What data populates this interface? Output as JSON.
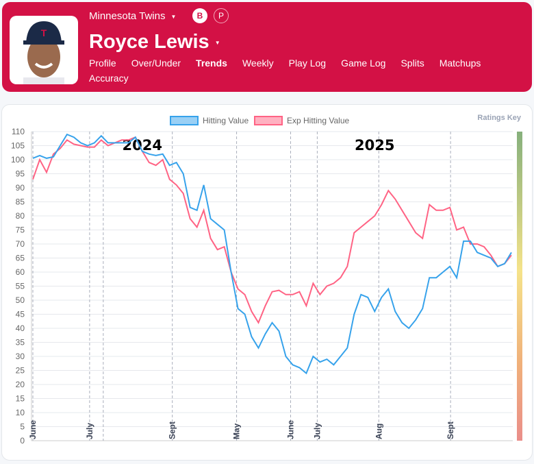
{
  "header": {
    "team": "Minnesota Twins",
    "player": "Royce Lewis",
    "badges": [
      "B",
      "P"
    ],
    "nav": [
      {
        "label": "Profile"
      },
      {
        "label": "Over/Under"
      },
      {
        "label": "Trends",
        "active": true
      },
      {
        "label": "Weekly"
      },
      {
        "label": "Play Log"
      },
      {
        "label": "Game Log"
      },
      {
        "label": "Splits"
      },
      {
        "label": "Matchups"
      },
      {
        "label": "Accuracy"
      }
    ]
  },
  "ratings_key": "Ratings Key",
  "colors": {
    "brand": "#d31145",
    "hitting": "#36a2eb",
    "exp": "#ff6384"
  },
  "chart_data": {
    "type": "line",
    "ylim": [
      0,
      110
    ],
    "yticks": [
      0,
      5,
      10,
      15,
      20,
      25,
      30,
      35,
      40,
      45,
      50,
      55,
      60,
      65,
      70,
      75,
      80,
      85,
      90,
      95,
      100,
      105,
      110
    ],
    "grid": true,
    "legend": "top",
    "month_ticks": [
      {
        "label": "June",
        "at": 0
      },
      {
        "label": "July",
        "at": 8.3
      },
      {
        "label": "",
        "at": 10.3
      },
      {
        "label": "Sept",
        "at": 20.4
      },
      {
        "label": "May",
        "at": 29.8
      },
      {
        "label": "June",
        "at": 37.7
      },
      {
        "label": "July",
        "at": 41.6
      },
      {
        "label": "Aug",
        "at": 50.6
      },
      {
        "label": "Sept",
        "at": 61.1
      }
    ],
    "year_labels": [
      {
        "label": "2024",
        "at": 16
      },
      {
        "label": "2025",
        "at": 50
      }
    ],
    "series": [
      {
        "name": "Hitting Value",
        "values": [
          100.5,
          101.5,
          100.5,
          101,
          105,
          109,
          108,
          106,
          105,
          106,
          108.5,
          106,
          106,
          106,
          106,
          108,
          103,
          102,
          101.5,
          102,
          98,
          99,
          95,
          83,
          82,
          91,
          79,
          77,
          75,
          60,
          47,
          45,
          37,
          33,
          38,
          42,
          39,
          30,
          27,
          26,
          24,
          30,
          28,
          29,
          27,
          30,
          33,
          45,
          52,
          51,
          46,
          51,
          54,
          46,
          42,
          40,
          43,
          47,
          58,
          58,
          60,
          62,
          58,
          71,
          71,
          67,
          66,
          65,
          62,
          63,
          67
        ]
      },
      {
        "name": "Exp Hitting Value",
        "values": [
          93,
          100,
          95.5,
          102,
          104,
          107,
          105.5,
          105,
          104.5,
          104.5,
          107,
          105,
          106,
          107,
          107,
          108,
          103,
          99,
          98,
          100,
          93,
          91,
          88,
          79,
          76,
          82,
          72,
          68,
          69,
          60,
          54,
          52,
          46,
          42,
          48,
          53,
          53.5,
          52,
          52,
          53,
          48,
          56,
          52,
          55,
          56,
          58,
          62,
          74,
          76,
          78,
          80,
          84,
          89,
          86,
          82,
          78,
          74,
          72,
          84,
          82,
          82,
          83,
          75,
          76,
          70,
          70,
          69,
          66,
          62,
          63,
          66
        ]
      }
    ]
  }
}
